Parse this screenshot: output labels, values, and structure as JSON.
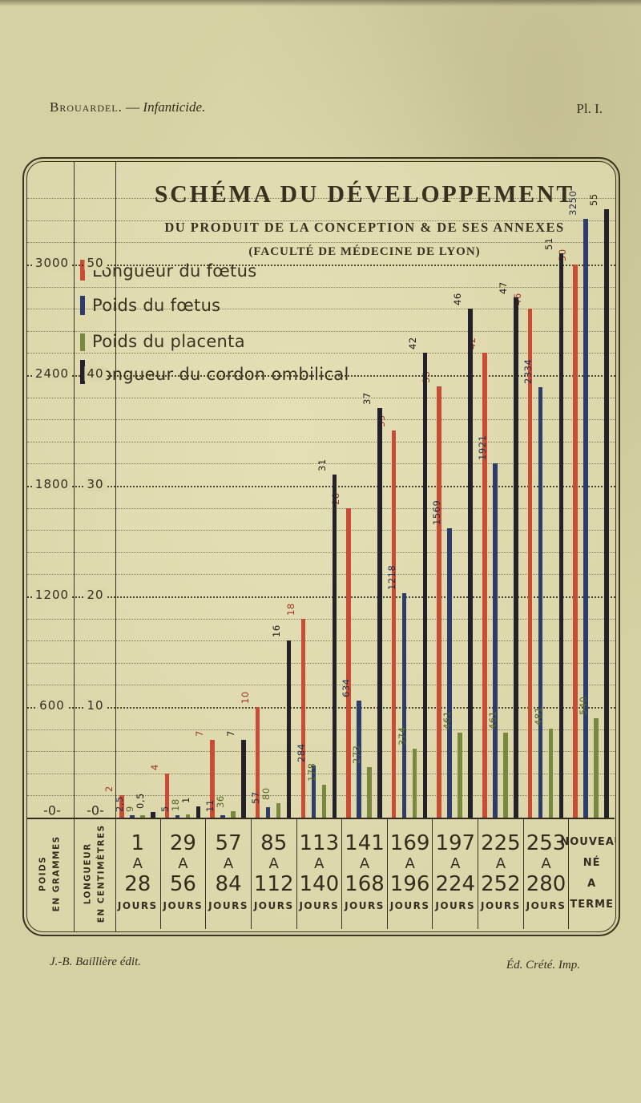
{
  "page": {
    "header": {
      "author": "Brouardel.",
      "separator": "—",
      "work": "Infanticide.",
      "plate": "Pl. I."
    },
    "footer": {
      "publisher": "J.-B. Baillière édit.",
      "printer": "Éd. Crété. Imp."
    }
  },
  "chart_data": {
    "type": "bar",
    "title": "SCHÉMA DU DÉVELOPPEMENT",
    "subtitle": "DU PRODUIT DE LA CONCEPTION & DE SES ANNEXES",
    "subtitle2": "(FACULTÉ DE MÉDECINE DE LYON)",
    "axes": {
      "left_axis_title_lines": "POIDS\nEN GRAMMES",
      "right_axis_title_lines": "LONGUEUR\nEN CENTIMÈTRES",
      "poids_ticks": [
        "600",
        "1200",
        "1800",
        "2400",
        "3000"
      ],
      "longueur_ticks": [
        "10",
        "20",
        "30",
        "40",
        "50"
      ],
      "zero_label_poids": "-0-",
      "zero_label_longueur": "-0-",
      "poids_range_g": [
        0,
        3300
      ],
      "longueur_range_cm": [
        0,
        56
      ],
      "grid": "dotted"
    },
    "legend_position": "top-left",
    "categories": [
      {
        "lines": [
          "1",
          "A",
          "28",
          "JOURS"
        ]
      },
      {
        "lines": [
          "29",
          "A",
          "56",
          "JOURS"
        ]
      },
      {
        "lines": [
          "57",
          "A",
          "84",
          "JOURS"
        ]
      },
      {
        "lines": [
          "85",
          "A",
          "112",
          "JOURS"
        ]
      },
      {
        "lines": [
          "113",
          "A",
          "140",
          "JOURS"
        ]
      },
      {
        "lines": [
          "141",
          "A",
          "168",
          "JOURS"
        ]
      },
      {
        "lines": [
          "169",
          "A",
          "196",
          "JOURS"
        ]
      },
      {
        "lines": [
          "197",
          "A",
          "224",
          "JOURS"
        ]
      },
      {
        "lines": [
          "225",
          "A",
          "252",
          "JOURS"
        ]
      },
      {
        "lines": [
          "253",
          "A",
          "280",
          "JOURS"
        ]
      },
      {
        "lines": [
          "NOUVEAU",
          "NÉ",
          "A TERME"
        ],
        "special": true
      }
    ],
    "series": [
      {
        "key": "longueur-foetus",
        "name": "Longueur du fœtus",
        "unit": "cm",
        "color": "#c94c35",
        "label_color": "#9c3322",
        "values": [
          2,
          4,
          7,
          10,
          18,
          28,
          35,
          39,
          42,
          46,
          50
        ],
        "labels": [
          "2",
          "4",
          "7",
          "10",
          "18",
          "28",
          "35",
          "39",
          "42",
          "46",
          "50"
        ]
      },
      {
        "key": "poids-foetus",
        "name": "Poids du fœtus",
        "unit": "g",
        "color": "#2d3c6b",
        "label_color": "#222e4e",
        "values": [
          2.5,
          5,
          11,
          57,
          284,
          634,
          1218,
          1569,
          1921,
          2334,
          3250
        ],
        "labels": [
          "2,5",
          "5",
          "11",
          "57",
          "284",
          "634",
          "1218",
          "1569",
          "1921",
          "2334",
          "3250"
        ]
      },
      {
        "key": "poids-placenta",
        "name": "Poids du placenta",
        "unit": "g",
        "color": "#78883e",
        "label_color": "#59672b",
        "values": [
          9,
          18,
          36,
          80,
          178,
          273,
          374,
          461,
          461,
          481,
          540
        ],
        "labels": [
          "9",
          "18",
          "36",
          "80",
          "178",
          "273",
          "374",
          "461",
          "461",
          "481",
          "540"
        ]
      },
      {
        "key": "longueur-cordon",
        "name": "Longueur du cordon ombilical",
        "unit": "cm",
        "color": "#23212a",
        "label_color": "#1f1c16",
        "values": [
          0.5,
          1,
          7,
          16,
          31,
          37,
          42,
          46,
          47,
          51,
          55
        ],
        "labels": [
          "0,5",
          "1",
          "7",
          "16",
          "31",
          "37",
          "42",
          "46",
          "47",
          "51",
          "55"
        ]
      }
    ]
  }
}
